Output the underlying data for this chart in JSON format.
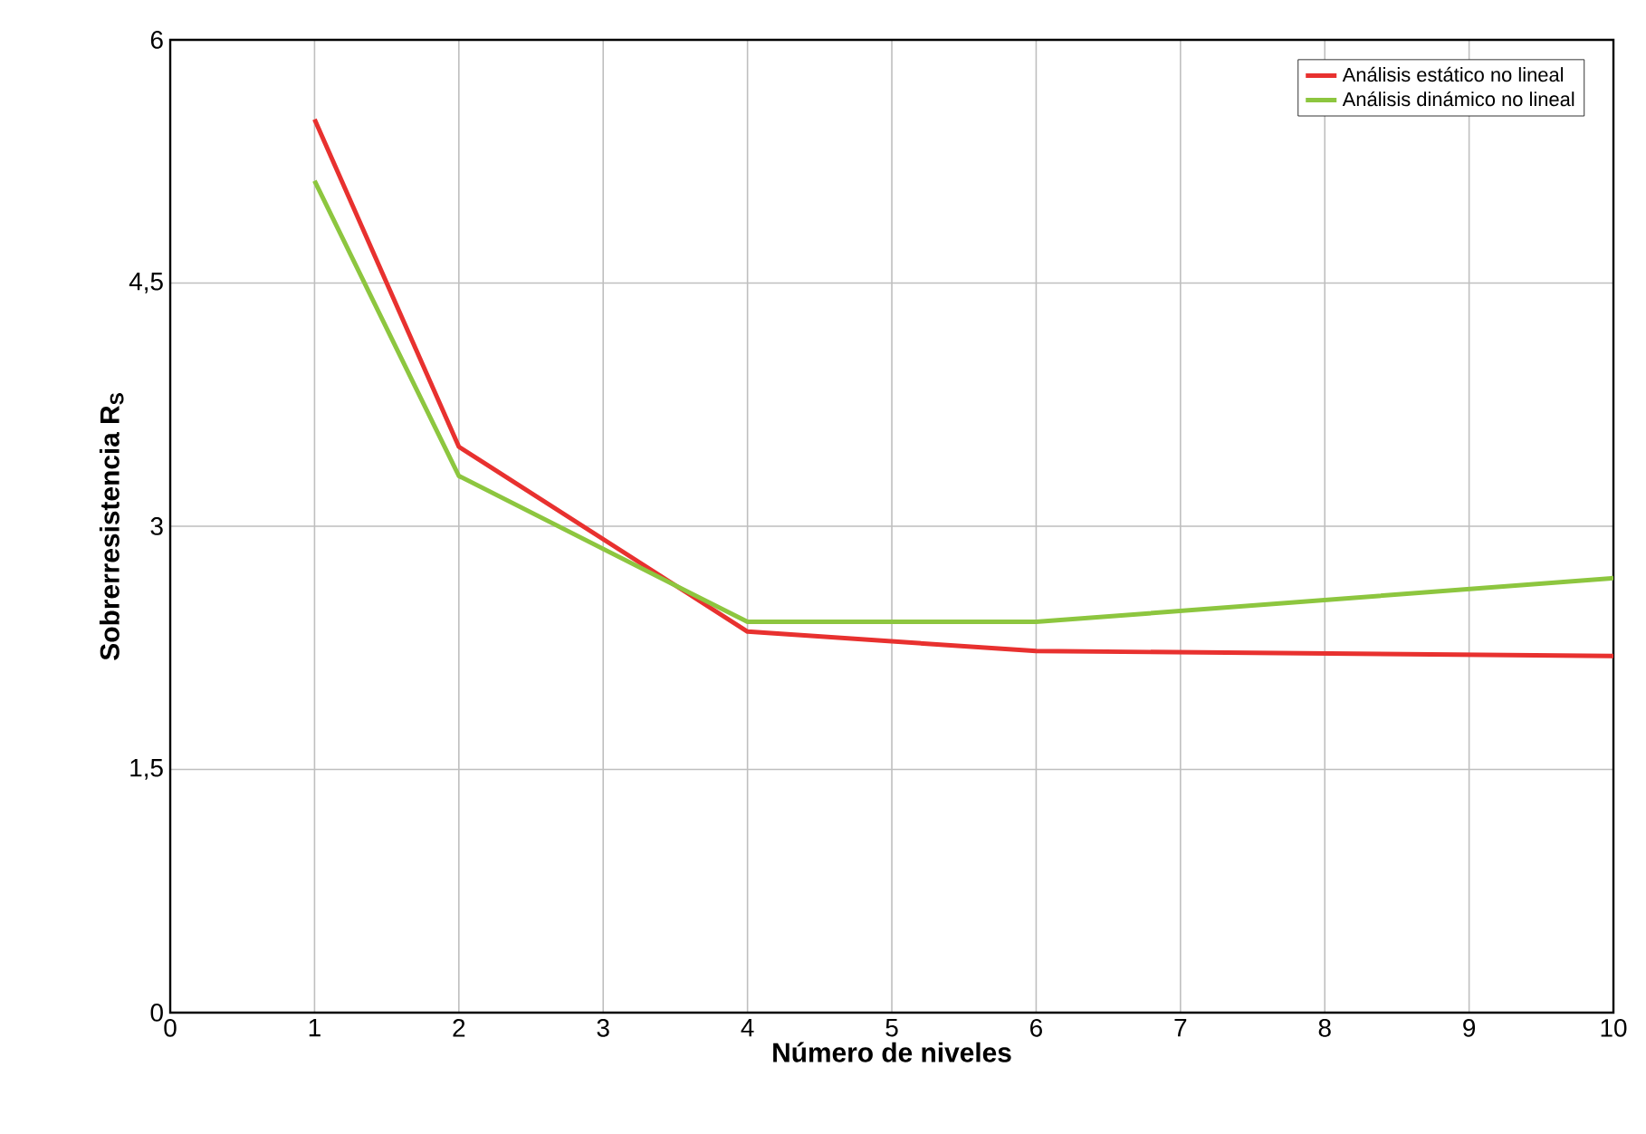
{
  "chart_data": {
    "type": "line",
    "xlabel": "Número de niveles",
    "ylabel": "Sobrerresistencia R$_{S}$",
    "x": [
      1,
      2,
      4,
      6,
      10
    ],
    "series": [
      {
        "name": "Análisis estático no lineal",
        "color": "#e8312f",
        "values": [
          5.51,
          3.49,
          2.35,
          2.23,
          2.2
        ]
      },
      {
        "name": "Análisis dinámico no lineal",
        "color": "#8dc63f",
        "values": [
          5.13,
          3.31,
          2.41,
          2.41,
          2.68
        ]
      }
    ],
    "xlim": [
      0,
      10
    ],
    "ylim": [
      0,
      6
    ],
    "xticks": [
      0,
      1,
      2,
      3,
      4,
      5,
      6,
      7,
      8,
      9,
      10
    ],
    "yticks": [
      0,
      {
        "value": 1.5,
        "label": "1,5"
      },
      3,
      {
        "value": 4.5,
        "label": "4,5"
      },
      6
    ],
    "grid": true,
    "legend": "top right",
    "marker": "none",
    "line_style": "solid"
  }
}
